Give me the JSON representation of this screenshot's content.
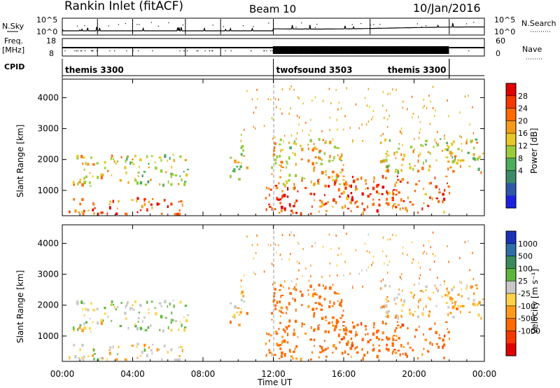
{
  "header": {
    "station": "Rankin Inlet (fitACF)",
    "beam": "Beam 10",
    "date": "10/Jan/2016"
  },
  "side_labels": {
    "nsky": "N.Sky",
    "nsearch": "N.Search",
    "freq": "Freq.",
    "freq_unit": "[MHz]",
    "nave": "Nave",
    "cpid": "CPID"
  },
  "nsky_ticks": [
    "10^5",
    "10^0"
  ],
  "freq_ticks": [
    "18",
    "8"
  ],
  "nave_ticks": [
    "60",
    "0"
  ],
  "cpid_segments": [
    {
      "label": "themis 3300",
      "start_h": 0,
      "end_h": 12
    },
    {
      "label": "twofsound 3503",
      "start_h": 12,
      "end_h": 22
    },
    {
      "label": "themis 3300",
      "start_h": 22,
      "end_h": 24
    }
  ],
  "axes": {
    "x_ticks": [
      "00:00",
      "04:00",
      "08:00",
      "12:00",
      "16:00",
      "20:00",
      "00:00"
    ],
    "x_label": "Time UT",
    "y_label": "Slant Range [km]",
    "y_ticks": [
      "4000",
      "3000",
      "2000",
      "1000"
    ]
  },
  "power_scale": {
    "title": "Power [dB]",
    "ticks": [
      "28",
      "24",
      "20",
      "16",
      "12",
      "8",
      "4"
    ],
    "colors": [
      "#e00000",
      "#f43800",
      "#ff6a00",
      "#f59a18",
      "#e6c828",
      "#9acb3a",
      "#4cae5a",
      "#3d8a6a",
      "#2d58a8",
      "#1a22e0"
    ]
  },
  "velocity_scale": {
    "title": "Velocity [m s⁻¹]",
    "ticks": [
      "1000",
      "500",
      "100",
      "25",
      "-25",
      "-100",
      "-500",
      "-1000"
    ],
    "colors": [
      "#1a32b8",
      "#2e6ea8",
      "#3b8a5c",
      "#5fb53c",
      "#c8c8c8",
      "#ffd24a",
      "#ff9a1a",
      "#ff6a00",
      "#f43800",
      "#e00000"
    ]
  },
  "chart_data": {
    "type": "heatmap",
    "x_range_hours": [
      0,
      24
    ],
    "y_range_km": [
      180,
      4600
    ],
    "panels": [
      "power",
      "velocity"
    ],
    "scatter_regions": [
      {
        "t0": 0.5,
        "t1": 3.6,
        "r0": 1150,
        "r1": 2250,
        "power": 18,
        "velocity": 60
      },
      {
        "t0": 3.6,
        "t1": 7.2,
        "r0": 1200,
        "r1": 2200,
        "power": 14,
        "velocity": 80
      },
      {
        "t0": 0.3,
        "t1": 6.8,
        "r0": 250,
        "r1": 800,
        "power": 24,
        "velocity": 20
      },
      {
        "t0": 9.5,
        "t1": 10.5,
        "r0": 1400,
        "r1": 2500,
        "power": 14,
        "velocity": -30
      },
      {
        "t0": 11.5,
        "t1": 14.5,
        "r0": 250,
        "r1": 1200,
        "power": 26,
        "velocity": -150
      },
      {
        "t0": 11.8,
        "t1": 16.0,
        "r0": 1200,
        "r1": 2700,
        "power": 18,
        "velocity": -250
      },
      {
        "t0": 14.5,
        "t1": 22.0,
        "r0": 300,
        "r1": 1500,
        "power": 24,
        "velocity": -300
      },
      {
        "t0": 18.0,
        "t1": 24.0,
        "r0": 1600,
        "r1": 2700,
        "power": 16,
        "velocity": -20
      }
    ]
  }
}
